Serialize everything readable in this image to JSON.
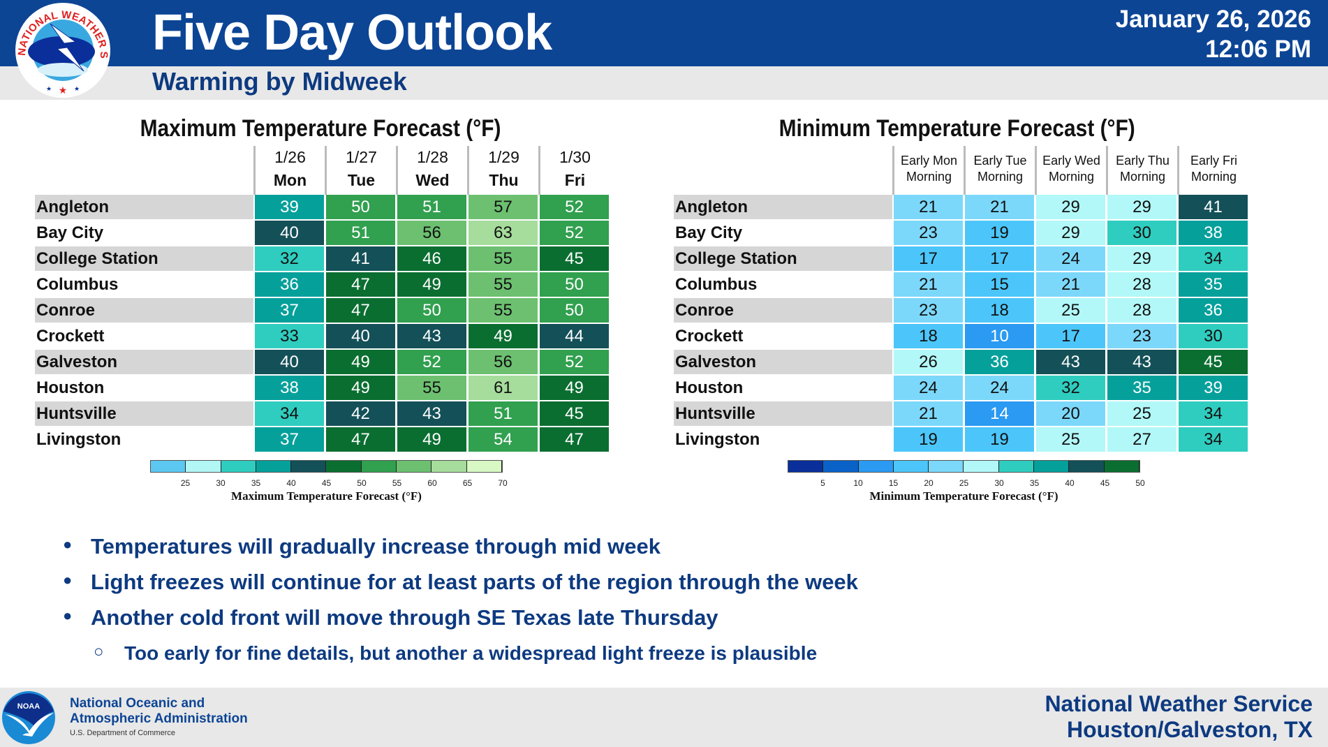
{
  "header": {
    "title": "Five Day Outlook",
    "subtitle": "Warming by Midweek",
    "date": "January 26, 2026",
    "time": "12:06 PM",
    "logo_text": "NATIONAL WEATHER SERVICE"
  },
  "max_table": {
    "title": "Maximum Temperature Forecast (°F)",
    "columns": [
      {
        "line1": "1/26",
        "line2": "Mon"
      },
      {
        "line1": "1/27",
        "line2": "Tue"
      },
      {
        "line1": "1/28",
        "line2": "Wed"
      },
      {
        "line1": "1/29",
        "line2": "Thu"
      },
      {
        "line1": "1/30",
        "line2": "Fri"
      }
    ],
    "rows": [
      {
        "name": "Angleton",
        "values": [
          39,
          50,
          51,
          57,
          52
        ]
      },
      {
        "name": "Bay City",
        "values": [
          40,
          51,
          56,
          63,
          52
        ]
      },
      {
        "name": "College Station",
        "values": [
          32,
          41,
          46,
          55,
          45
        ]
      },
      {
        "name": "Columbus",
        "values": [
          36,
          47,
          49,
          55,
          50
        ]
      },
      {
        "name": "Conroe",
        "values": [
          37,
          47,
          50,
          55,
          50
        ]
      },
      {
        "name": "Crockett",
        "values": [
          33,
          40,
          43,
          49,
          44
        ]
      },
      {
        "name": "Galveston",
        "values": [
          40,
          49,
          52,
          56,
          52
        ]
      },
      {
        "name": "Houston",
        "values": [
          38,
          49,
          55,
          61,
          49
        ]
      },
      {
        "name": "Huntsville",
        "values": [
          34,
          42,
          43,
          51,
          45
        ]
      },
      {
        "name": "Livingston",
        "values": [
          37,
          47,
          49,
          54,
          47
        ]
      }
    ],
    "legend": {
      "title": "Maximum Temperature Forecast (°F)",
      "ticks": [
        25,
        30,
        35,
        40,
        45,
        50,
        55,
        60,
        65,
        70
      ],
      "colors": [
        "#5cc8f2",
        "#b2f6f6",
        "#2fcdbf",
        "#06a09b",
        "#145058",
        "#0b6e31",
        "#31a04f",
        "#6cc070",
        "#a6dc9c",
        "#d8f8c4"
      ],
      "text_colors": [
        "#111",
        "#111",
        "#111",
        "#fff",
        "#fff",
        "#fff",
        "#fff",
        "#111",
        "#111",
        "#111"
      ]
    }
  },
  "min_table": {
    "title": "Minimum Temperature Forecast (°F)",
    "columns": [
      {
        "line1": "Early Mon",
        "line2": "Morning"
      },
      {
        "line1": "Early Tue",
        "line2": "Morning"
      },
      {
        "line1": "Early Wed",
        "line2": "Morning"
      },
      {
        "line1": "Early Thu",
        "line2": "Morning"
      },
      {
        "line1": "Early Fri",
        "line2": "Morning"
      }
    ],
    "rows": [
      {
        "name": "Angleton",
        "values": [
          21,
          21,
          29,
          29,
          41
        ]
      },
      {
        "name": "Bay City",
        "values": [
          23,
          19,
          29,
          30,
          38
        ]
      },
      {
        "name": "College Station",
        "values": [
          17,
          17,
          24,
          29,
          34
        ]
      },
      {
        "name": "Columbus",
        "values": [
          21,
          15,
          21,
          28,
          35
        ]
      },
      {
        "name": "Conroe",
        "values": [
          23,
          18,
          25,
          28,
          36
        ]
      },
      {
        "name": "Crockett",
        "values": [
          18,
          10,
          17,
          23,
          30
        ]
      },
      {
        "name": "Galveston",
        "values": [
          26,
          36,
          43,
          43,
          45
        ]
      },
      {
        "name": "Houston",
        "values": [
          24,
          24,
          32,
          35,
          39
        ]
      },
      {
        "name": "Huntsville",
        "values": [
          21,
          14,
          20,
          25,
          34
        ]
      },
      {
        "name": "Livingston",
        "values": [
          19,
          19,
          25,
          27,
          34
        ]
      }
    ],
    "legend": {
      "title": "Minimum Temperature Forecast (°F)",
      "ticks": [
        5,
        10,
        15,
        20,
        25,
        30,
        35,
        40,
        45,
        50
      ],
      "colors": [
        "#0a2f9a",
        "#0a62c8",
        "#2a9af2",
        "#4cc6fa",
        "#7cd8fa",
        "#b2f8f8",
        "#2fcdbf",
        "#06a09b",
        "#145058",
        "#0b6e31"
      ],
      "text_colors": [
        "#fff",
        "#fff",
        "#fff",
        "#111",
        "#111",
        "#111",
        "#111",
        "#fff",
        "#fff",
        "#fff"
      ]
    }
  },
  "bullets": [
    {
      "text": "Temperatures will gradually increase through mid week"
    },
    {
      "text": "Light freezes will continue for at least parts of the region through the week"
    },
    {
      "text": "Another cold front will move through SE Texas late Thursday",
      "sub": [
        "Too early for fine details, but another a widespread light freeze is plausible"
      ]
    }
  ],
  "footer": {
    "noaa_line1": "National Oceanic and",
    "noaa_line2": "Atmospheric Administration",
    "noaa_dept": "U.S. Department of Commerce",
    "noaa_logo_text": "NOAA",
    "nws_line1": "National Weather Service",
    "nws_line2": "Houston/Galveston, TX"
  }
}
